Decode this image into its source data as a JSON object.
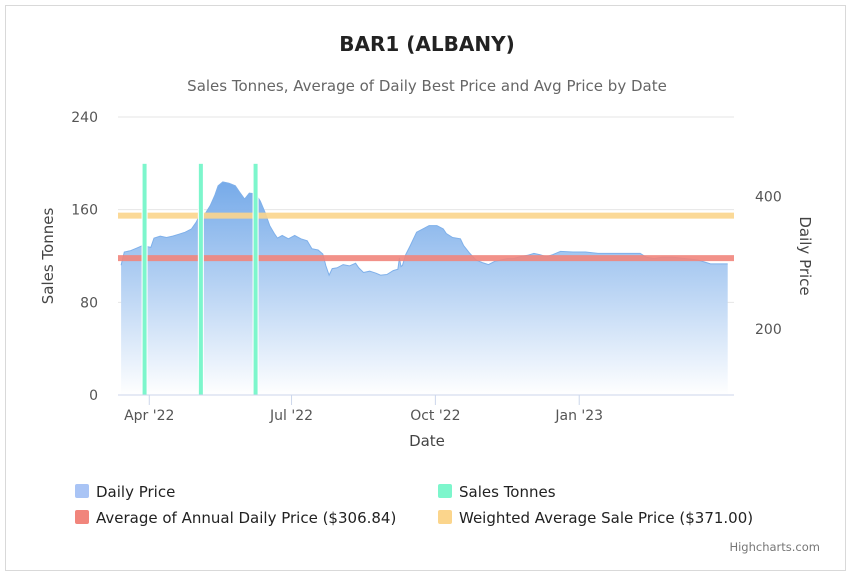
{
  "chart_data": {
    "type": "area",
    "title": "BAR1 (ALBANY)",
    "subtitle": "Sales Tonnes, Average of Daily Best Price and Avg Price by Date",
    "xlabel": "Date",
    "ylabel_left": "Sales Tonnes",
    "ylabel_right": "Daily Price",
    "y_left_ticks": [
      "0",
      "80",
      "160",
      "240"
    ],
    "y_left_range": [
      0,
      240
    ],
    "y_right_ticks": [
      "200",
      "400"
    ],
    "y_right_range": [
      100,
      520
    ],
    "x_ticks": [
      {
        "label": "Apr '22",
        "date": "2022-04-01"
      },
      {
        "label": "Jul '22",
        "date": "2022-07-01"
      },
      {
        "label": "Oct '22",
        "date": "2022-10-01"
      },
      {
        "label": "Jan '23",
        "date": "2023-01-01"
      }
    ],
    "x_range": [
      "2022-03-12",
      "2023-04-10"
    ],
    "grid": true,
    "legend_position": "bottom",
    "series": [
      {
        "name": "Daily Price",
        "axis": "right",
        "color": "#a9c4f5",
        "points": [
          [
            "2022-03-14",
            296
          ],
          [
            "2022-03-16",
            316
          ],
          [
            "2022-03-20",
            318
          ],
          [
            "2022-03-24",
            322
          ],
          [
            "2022-03-28",
            326
          ],
          [
            "2022-03-31",
            324
          ],
          [
            "2022-04-02",
            323
          ],
          [
            "2022-04-04",
            337
          ],
          [
            "2022-04-08",
            340
          ],
          [
            "2022-04-12",
            338
          ],
          [
            "2022-04-16",
            340
          ],
          [
            "2022-04-20",
            343
          ],
          [
            "2022-04-24",
            346
          ],
          [
            "2022-04-28",
            351
          ],
          [
            "2022-05-01",
            361
          ],
          [
            "2022-05-03",
            371
          ],
          [
            "2022-05-06",
            371
          ],
          [
            "2022-05-10",
            386
          ],
          [
            "2022-05-13",
            402
          ],
          [
            "2022-05-15",
            416
          ],
          [
            "2022-05-18",
            422
          ],
          [
            "2022-05-22",
            420
          ],
          [
            "2022-05-26",
            416
          ],
          [
            "2022-05-29",
            406
          ],
          [
            "2022-06-01",
            396
          ],
          [
            "2022-06-04",
            405
          ],
          [
            "2022-06-08",
            404
          ],
          [
            "2022-06-11",
            393
          ],
          [
            "2022-06-14",
            376
          ],
          [
            "2022-06-17",
            356
          ],
          [
            "2022-06-20",
            344
          ],
          [
            "2022-06-22",
            337
          ],
          [
            "2022-06-25",
            341
          ],
          [
            "2022-06-29",
            336
          ],
          [
            "2022-07-03",
            341
          ],
          [
            "2022-07-07",
            336
          ],
          [
            "2022-07-11",
            333
          ],
          [
            "2022-07-14",
            321
          ],
          [
            "2022-07-18",
            319
          ],
          [
            "2022-07-21",
            313
          ],
          [
            "2022-07-23",
            295
          ],
          [
            "2022-07-25",
            281
          ],
          [
            "2022-07-27",
            291
          ],
          [
            "2022-07-30",
            292
          ],
          [
            "2022-08-03",
            297
          ],
          [
            "2022-08-07",
            295
          ],
          [
            "2022-08-11",
            299
          ],
          [
            "2022-08-13",
            292
          ],
          [
            "2022-08-16",
            285
          ],
          [
            "2022-08-20",
            287
          ],
          [
            "2022-08-24",
            284
          ],
          [
            "2022-08-27",
            281
          ],
          [
            "2022-08-31",
            282
          ],
          [
            "2022-09-04",
            288
          ],
          [
            "2022-09-07",
            290
          ],
          [
            "2022-09-08",
            307
          ],
          [
            "2022-09-09",
            294
          ],
          [
            "2022-09-10",
            296
          ],
          [
            "2022-09-12",
            312
          ],
          [
            "2022-09-15",
            326
          ],
          [
            "2022-09-19",
            346
          ],
          [
            "2022-09-23",
            351
          ],
          [
            "2022-09-27",
            356
          ],
          [
            "2022-10-02",
            356
          ],
          [
            "2022-10-06",
            351
          ],
          [
            "2022-10-08",
            344
          ],
          [
            "2022-10-12",
            338
          ],
          [
            "2022-10-17",
            336
          ],
          [
            "2022-10-19",
            326
          ],
          [
            "2022-10-23",
            314
          ],
          [
            "2022-10-27",
            304
          ],
          [
            "2022-10-31",
            300
          ],
          [
            "2022-11-04",
            297
          ],
          [
            "2022-11-08",
            302
          ],
          [
            "2022-11-12",
            304
          ],
          [
            "2022-11-16",
            306
          ],
          [
            "2022-11-20",
            306
          ],
          [
            "2022-11-24",
            309
          ],
          [
            "2022-11-29",
            311
          ],
          [
            "2022-12-03",
            314
          ],
          [
            "2022-12-07",
            312
          ],
          [
            "2022-12-11",
            309
          ],
          [
            "2022-12-15",
            312
          ],
          [
            "2022-12-20",
            317
          ],
          [
            "2022-12-28",
            316
          ],
          [
            "2023-01-05",
            316
          ],
          [
            "2023-01-13",
            314
          ],
          [
            "2023-01-22",
            314
          ],
          [
            "2023-02-01",
            314
          ],
          [
            "2023-02-09",
            314
          ],
          [
            "2023-02-13",
            308
          ],
          [
            "2023-02-18",
            306
          ],
          [
            "2023-02-23",
            308
          ],
          [
            "2023-03-02",
            308
          ],
          [
            "2023-03-10",
            306
          ],
          [
            "2023-03-18",
            304
          ],
          [
            "2023-03-26",
            298
          ],
          [
            "2023-04-06",
            298
          ]
        ]
      },
      {
        "name": "Sales Tonnes",
        "axis": "left",
        "type": "column",
        "color": "#7df6cc",
        "points": [
          [
            "2022-03-29",
            200
          ],
          [
            "2022-05-04",
            200
          ],
          [
            "2022-06-08",
            200
          ]
        ]
      },
      {
        "name": "Average of Annual Daily Price ($306.84)",
        "axis": "right",
        "type": "constant",
        "color": "#f1857c",
        "value": 306.84
      },
      {
        "name": "Weighted Average Sale Price ($371.00)",
        "axis": "right",
        "type": "constant",
        "color": "#fbd58c",
        "value": 371.0
      }
    ]
  },
  "credits": "Highcharts.com"
}
